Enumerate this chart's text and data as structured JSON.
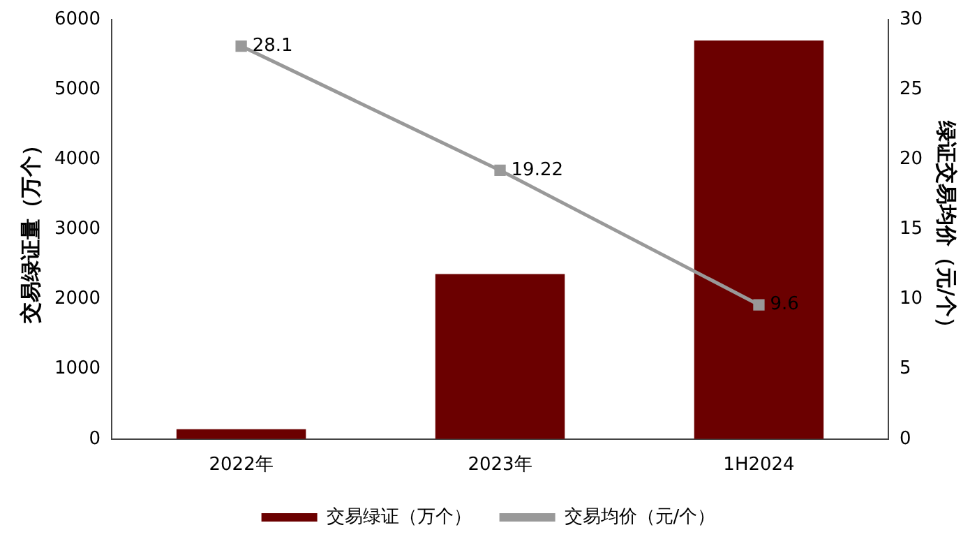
{
  "chart_data": {
    "type": "bar",
    "categories": [
      "2022年",
      "2023年",
      "1H2024"
    ],
    "ylabel": "交易绿证量（万个）",
    "y2label": "绿证交易均价（元/个）",
    "series": [
      {
        "name": "交易绿证（万个）",
        "color": "#6b0000",
        "values": [
          140,
          2360,
          5700
        ]
      },
      {
        "name": "交易均价（元/个）",
        "type": "line",
        "axis": "y2",
        "color": "#999999",
        "values": [
          28.1,
          19.22,
          9.6
        ],
        "value_labels": [
          "28.1",
          "19.22",
          "9.6"
        ],
        "marker": "square"
      }
    ],
    "ylim": [
      0,
      6000
    ],
    "yticks": [
      0,
      1000,
      2000,
      3000,
      4000,
      5000,
      6000
    ],
    "y2lim": [
      0,
      30
    ],
    "y2ticks": [
      0,
      5,
      10,
      15,
      20,
      25,
      30
    ],
    "grid": false,
    "legend": "bottom",
    "line_style": "solid"
  }
}
